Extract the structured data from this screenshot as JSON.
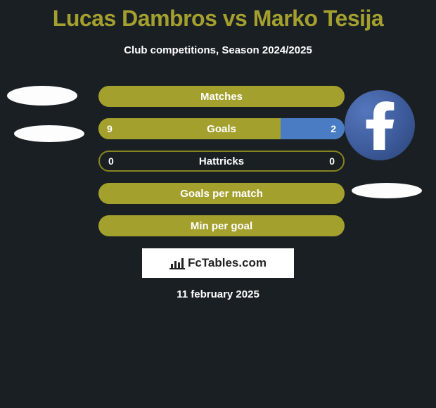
{
  "title": "Lucas Dambros vs Marko Tesija",
  "subtitle": "Club competitions, Season 2024/2025",
  "date": "11 february 2025",
  "watermark": "FcTables.com",
  "colors": {
    "olive": "#a4a02e",
    "olive_border": "#87851f",
    "blue": "#4a7cc4",
    "white": "#ffffff",
    "background": "#1a1f24"
  },
  "bars": [
    {
      "label": "Matches",
      "left_val": null,
      "right_val": null,
      "left_pct": 100,
      "right_pct": 0,
      "left_color": "#a4a02e",
      "right_color": "#a4a02e",
      "bg_color": "#a4a02e"
    },
    {
      "label": "Goals",
      "left_val": "9",
      "right_val": "2",
      "left_pct": 74,
      "right_pct": 26,
      "left_color": "#a4a02e",
      "right_color": "#4a7cc4",
      "bg_color": "#a4a02e"
    },
    {
      "label": "Hattricks",
      "left_val": "0",
      "right_val": "0",
      "left_pct": 0,
      "right_pct": 0,
      "left_color": "#a4a02e",
      "right_color": "#a4a02e",
      "bg_color": "none",
      "border": "#87851f"
    },
    {
      "label": "Goals per match",
      "left_val": null,
      "right_val": null,
      "left_pct": 100,
      "right_pct": 0,
      "left_color": "#a4a02e",
      "right_color": "#a4a02e",
      "bg_color": "#a4a02e"
    },
    {
      "label": "Min per goal",
      "left_val": null,
      "right_val": null,
      "left_pct": 100,
      "right_pct": 0,
      "left_color": "#a4a02e",
      "right_color": "#a4a02e",
      "bg_color": "#a4a02e"
    }
  ]
}
